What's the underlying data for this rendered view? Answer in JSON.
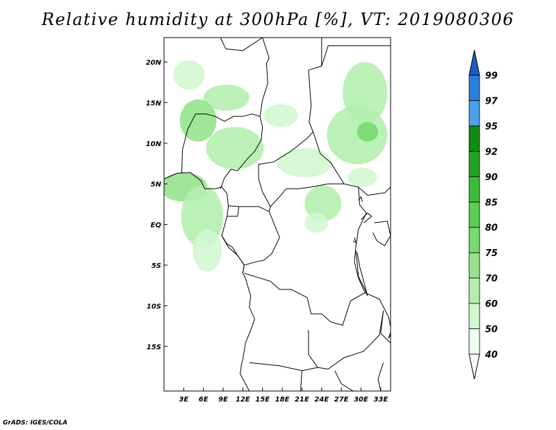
{
  "title": "Relative humidity at 300hPa [%], VT: 2019080306",
  "credit": "GrADS: IGES/COLA",
  "map": {
    "lon_range": [
      0,
      34.5
    ],
    "lat_range": [
      -20.5,
      23
    ],
    "lon_ticks": [
      3,
      6,
      9,
      12,
      15,
      18,
      21,
      24,
      27,
      30,
      33
    ],
    "lon_tick_labels": [
      "3E",
      "6E",
      "9E",
      "12E",
      "15E",
      "18E",
      "21E",
      "24E",
      "27E",
      "30E",
      "33E"
    ],
    "lat_ticks": [
      20,
      15,
      10,
      5,
      0,
      -5,
      -10,
      -15
    ],
    "lat_tick_labels": [
      "20N",
      "15N",
      "10N",
      "5N",
      "EQ",
      "5S",
      "10S",
      "15S"
    ]
  },
  "colorbar": {
    "levels": [
      "40",
      "50",
      "60",
      "70",
      "75",
      "80",
      "85",
      "90",
      "92",
      "95",
      "97",
      "99"
    ],
    "colors": [
      "#f0fff0",
      "#d2f7cf",
      "#b4eeaf",
      "#96e38e",
      "#78d96e",
      "#5acf50",
      "#3bbd3a",
      "#23a324",
      "#128b12",
      "#4aa0ea",
      "#2b7fdc",
      "#1a5fc4"
    ]
  },
  "humidity_areas": [
    {
      "lon": 3.8,
      "lat": 18.4,
      "rx": 2.4,
      "ry": 1.8,
      "level": "50"
    },
    {
      "lon": 9.5,
      "lat": 15.6,
      "rx": 3.5,
      "ry": 1.6,
      "level": "60"
    },
    {
      "lon": 5.2,
      "lat": 12.8,
      "rx": 2.8,
      "ry": 2.6,
      "level": "70"
    },
    {
      "lon": 10.8,
      "lat": 9.4,
      "rx": 4.4,
      "ry": 2.6,
      "level": "60"
    },
    {
      "lon": 3.0,
      "lat": 4.6,
      "rx": 3.6,
      "ry": 1.8,
      "level": "70"
    },
    {
      "lon": 5.8,
      "lat": 1.0,
      "rx": 3.2,
      "ry": 3.8,
      "level": "60"
    },
    {
      "lon": 6.6,
      "lat": -3.2,
      "rx": 2.2,
      "ry": 2.6,
      "level": "50"
    },
    {
      "lon": 17.8,
      "lat": 13.4,
      "rx": 2.6,
      "ry": 1.4,
      "level": "50"
    },
    {
      "lon": 21.4,
      "lat": 7.6,
      "rx": 4.2,
      "ry": 1.8,
      "level": "50"
    },
    {
      "lon": 24.2,
      "lat": 2.6,
      "rx": 2.8,
      "ry": 2.2,
      "level": "60"
    },
    {
      "lon": 23.2,
      "lat": 0.2,
      "rx": 1.8,
      "ry": 1.2,
      "level": "50"
    },
    {
      "lon": 30.6,
      "lat": 16.2,
      "rx": 3.4,
      "ry": 3.8,
      "level": "60"
    },
    {
      "lon": 29.4,
      "lat": 11.0,
      "rx": 4.6,
      "ry": 3.6,
      "level": "60"
    },
    {
      "lon": 31.0,
      "lat": 11.4,
      "rx": 1.6,
      "ry": 1.2,
      "level": "75"
    },
    {
      "lon": 30.2,
      "lat": 5.8,
      "rx": 2.2,
      "ry": 1.2,
      "level": "50"
    }
  ],
  "boundaries": [
    [
      [
        8.6,
        23
      ],
      [
        9.4,
        21.6
      ],
      [
        12.0,
        21.4
      ],
      [
        15.0,
        23
      ]
    ],
    [
      [
        15.0,
        23
      ],
      [
        16.0,
        20.5
      ],
      [
        15.6,
        19.8
      ],
      [
        15.8,
        17.4
      ],
      [
        15.0,
        15.3
      ],
      [
        14.6,
        13.3
      ],
      [
        13.4,
        13.6
      ],
      [
        12.0,
        13.3
      ],
      [
        10.6,
        13.3
      ],
      [
        9.2,
        12.7
      ],
      [
        7.8,
        13.3
      ],
      [
        6.4,
        13.6
      ],
      [
        4.8,
        13.6
      ],
      [
        3.6,
        11.7
      ],
      [
        2.8,
        9.2
      ],
      [
        2.7,
        6.3
      ]
    ],
    [
      [
        14.6,
        13.3
      ],
      [
        15.0,
        12.0
      ],
      [
        14.8,
        10.4
      ],
      [
        13.8,
        9.0
      ],
      [
        12.6,
        8.0
      ],
      [
        11.2,
        6.6
      ],
      [
        10.2,
        6.8
      ],
      [
        9.2,
        5.7
      ],
      [
        8.6,
        4.4
      ]
    ],
    [
      [
        24.0,
        23
      ],
      [
        24.0,
        19.5
      ],
      [
        22.0,
        19.0
      ],
      [
        22.4,
        14.6
      ],
      [
        22.1,
        12.6
      ],
      [
        22.7,
        11.4
      ],
      [
        21.8,
        10.6
      ],
      [
        19.3,
        9.0
      ],
      [
        16.7,
        7.7
      ],
      [
        14.4,
        7.4
      ],
      [
        14.4,
        5.6
      ],
      [
        15.0,
        4.0
      ],
      [
        16.2,
        2.2
      ],
      [
        16.0,
        1.6
      ],
      [
        14.4,
        2.2
      ],
      [
        11.4,
        2.2
      ],
      [
        9.8,
        2.3
      ]
    ],
    [
      [
        22.7,
        11.4
      ],
      [
        23.8,
        8.7
      ],
      [
        25.4,
        7.6
      ],
      [
        27.4,
        5.0
      ],
      [
        29.6,
        4.6
      ],
      [
        31.0,
        3.6
      ],
      [
        33.6,
        3.9
      ],
      [
        34.5,
        4.6
      ]
    ],
    [
      [
        24.0,
        19.5
      ],
      [
        25.0,
        22.0
      ],
      [
        34.5,
        22.0
      ]
    ],
    [
      [
        16.2,
        2.2
      ],
      [
        17.8,
        3.6
      ],
      [
        18.6,
        4.4
      ],
      [
        20.4,
        4.4
      ],
      [
        22.4,
        4.6
      ],
      [
        25.0,
        5.0
      ],
      [
        27.4,
        5.0
      ]
    ],
    [
      [
        11.4,
        2.2
      ],
      [
        11.2,
        1.0
      ],
      [
        9.6,
        1.0
      ]
    ],
    [
      [
        16.0,
        1.6
      ],
      [
        17.6,
        -1.6
      ],
      [
        16.4,
        -3.6
      ],
      [
        15.2,
        -4.4
      ],
      [
        14.0,
        -4.6
      ],
      [
        12.2,
        -5.0
      ],
      [
        12.0,
        -6.0
      ]
    ],
    [
      [
        12.2,
        -5.0
      ],
      [
        11.2,
        -3.8
      ],
      [
        10.4,
        -2.8
      ],
      [
        9.6,
        -2.4
      ],
      [
        8.8,
        -1.4
      ]
    ],
    [
      [
        29.6,
        4.6
      ],
      [
        29.8,
        2.4
      ],
      [
        30.8,
        1.4
      ],
      [
        29.6,
        -0.6
      ],
      [
        29.2,
        -2.8
      ],
      [
        29.0,
        -4.6
      ],
      [
        29.6,
        -6.6
      ],
      [
        30.6,
        -8.4
      ]
    ],
    [
      [
        12.2,
        -6.0
      ],
      [
        16.2,
        -7.0
      ],
      [
        17.6,
        -8.0
      ],
      [
        19.4,
        -8.0
      ],
      [
        21.8,
        -9.0
      ],
      [
        22.4,
        -11.0
      ],
      [
        24.0,
        -11.0
      ],
      [
        25.4,
        -12.0
      ],
      [
        27.2,
        -12.4
      ],
      [
        28.4,
        -9.4
      ],
      [
        30.6,
        -8.4
      ],
      [
        32.8,
        -9.2
      ]
    ],
    [
      [
        13.0,
        -17.0
      ],
      [
        17.6,
        -17.4
      ],
      [
        21.0,
        -18.0
      ],
      [
        23.4,
        -17.6
      ],
      [
        25.0,
        -17.8
      ]
    ],
    [
      [
        22.0,
        -13.0
      ],
      [
        22.0,
        -16.0
      ],
      [
        23.4,
        -17.6
      ]
    ],
    [
      [
        25.0,
        -17.8
      ],
      [
        27.4,
        -16.4
      ],
      [
        30.4,
        -15.6
      ],
      [
        32.8,
        -13.6
      ],
      [
        33.4,
        -10.6
      ]
    ],
    [
      [
        33.4,
        -10.6
      ],
      [
        33.0,
        -13.4
      ],
      [
        34.5,
        -14.6
      ]
    ],
    [
      [
        21.0,
        -18.0
      ],
      [
        20.8,
        -20.5
      ]
    ],
    [
      [
        26.0,
        -18.0
      ],
      [
        27.0,
        -19.6
      ],
      [
        28.8,
        -20.5
      ]
    ],
    [
      [
        33.4,
        -17.0
      ],
      [
        32.6,
        -19.0
      ],
      [
        33.0,
        -20.5
      ]
    ]
  ],
  "coastline": [
    [
      [
        0,
        5.6
      ],
      [
        2.0,
        6.3
      ],
      [
        4.0,
        6.4
      ],
      [
        5.6,
        5.4
      ],
      [
        6.2,
        4.4
      ],
      [
        7.8,
        4.4
      ],
      [
        8.8,
        4.6
      ],
      [
        9.6,
        3.8
      ],
      [
        9.8,
        2.2
      ],
      [
        9.6,
        1.0
      ],
      [
        9.2,
        -0.2
      ],
      [
        8.8,
        -1.4
      ],
      [
        9.8,
        -2.8
      ],
      [
        11.2,
        -3.8
      ],
      [
        12.2,
        -5.0
      ],
      [
        12.0,
        -6.0
      ],
      [
        12.4,
        -6.6
      ],
      [
        13.2,
        -8.8
      ],
      [
        13.0,
        -10.2
      ],
      [
        13.8,
        -11.6
      ],
      [
        13.4,
        -12.6
      ],
      [
        12.4,
        -14.6
      ],
      [
        12.0,
        -16.6
      ],
      [
        11.8,
        -17.2
      ],
      [
        11.6,
        -18.4
      ],
      [
        12.4,
        -19.6
      ],
      [
        13.0,
        -20.5
      ]
    ]
  ],
  "lakes": [
    [
      [
        32.8,
        -9.2
      ],
      [
        34.2,
        -11.4
      ],
      [
        34.6,
        -13.0
      ],
      [
        34.2,
        -14.0
      ],
      [
        34.5,
        -13.6
      ]
    ],
    [
      [
        29.2,
        -3.2
      ],
      [
        29.4,
        -4.6
      ],
      [
        29.6,
        -6.4
      ],
      [
        30.6,
        -8.0
      ],
      [
        31.0,
        -8.8
      ],
      [
        30.4,
        -7.0
      ],
      [
        29.8,
        -5.2
      ],
      [
        29.4,
        -3.4
      ]
    ],
    [
      [
        30.0,
        0.6
      ],
      [
        31.0,
        1.4
      ],
      [
        31.6,
        1.0
      ],
      [
        30.4,
        0.2
      ]
    ],
    [
      [
        29.0,
        -1.6
      ],
      [
        29.2,
        -2.2
      ],
      [
        28.8,
        -2.0
      ]
    ],
    [
      [
        32.0,
        0.2
      ],
      [
        34.0,
        0.4
      ],
      [
        34.5,
        -1.4
      ],
      [
        33.6,
        -2.6
      ],
      [
        32.4,
        -2.0
      ],
      [
        31.8,
        -1.0
      ]
    ],
    [
      [
        29.6,
        3.0
      ],
      [
        30.0,
        3.4
      ],
      [
        30.2,
        2.8
      ]
    ]
  ]
}
